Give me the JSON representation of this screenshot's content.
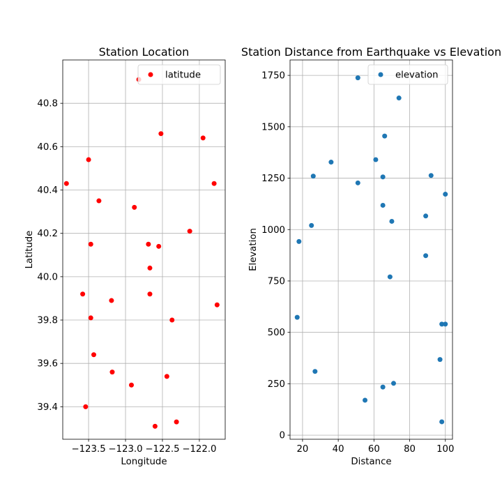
{
  "chart_data": [
    {
      "type": "scatter",
      "title": "Station Location",
      "xlabel": "Longitude",
      "ylabel": "Latitude",
      "xlim": [
        -123.85,
        -121.65
      ],
      "ylim": [
        39.25,
        41.0
      ],
      "xticks": [
        -123.5,
        -123.0,
        -122.5,
        -122.0
      ],
      "xtick_labels": [
        "−123.5",
        "−123.0",
        "−122.5",
        "−122.0"
      ],
      "yticks": [
        39.4,
        39.6,
        39.8,
        40.0,
        40.2,
        40.4,
        40.6,
        40.8
      ],
      "ytick_labels": [
        "39.4",
        "39.6",
        "39.8",
        "40.0",
        "40.2",
        "40.4",
        "40.6",
        "40.8"
      ],
      "grid": true,
      "legend_position": "upper right",
      "series": [
        {
          "name": "latitude",
          "color": "#ff0000",
          "points": [
            [
              -122.82,
              40.91
            ],
            [
              -122.52,
              40.66
            ],
            [
              -121.95,
              40.64
            ],
            [
              -123.5,
              40.54
            ],
            [
              -123.8,
              40.43
            ],
            [
              -121.8,
              40.43
            ],
            [
              -123.36,
              40.35
            ],
            [
              -122.88,
              40.32
            ],
            [
              -122.13,
              40.21
            ],
            [
              -123.47,
              40.15
            ],
            [
              -122.69,
              40.15
            ],
            [
              -122.55,
              40.14
            ],
            [
              -122.67,
              40.04
            ],
            [
              -123.58,
              39.92
            ],
            [
              -122.67,
              39.92
            ],
            [
              -123.19,
              39.89
            ],
            [
              -121.76,
              39.87
            ],
            [
              -123.47,
              39.81
            ],
            [
              -122.37,
              39.8
            ],
            [
              -123.43,
              39.64
            ],
            [
              -123.18,
              39.56
            ],
            [
              -122.44,
              39.54
            ],
            [
              -122.92,
              39.5
            ],
            [
              -123.54,
              39.4
            ],
            [
              -122.31,
              39.33
            ],
            [
              -122.6,
              39.31
            ]
          ]
        }
      ]
    },
    {
      "type": "scatter",
      "title": "Station Distance from Earthquake vs Elevation",
      "xlabel": "Distance",
      "ylabel": "Elevation",
      "xlim": [
        13,
        104
      ],
      "ylim": [
        -20,
        1825
      ],
      "xticks": [
        20,
        40,
        60,
        80,
        100
      ],
      "xtick_labels": [
        "20",
        "40",
        "60",
        "80",
        "100"
      ],
      "yticks": [
        0,
        250,
        500,
        750,
        1000,
        1250,
        1500,
        1750
      ],
      "ytick_labels": [
        "0",
        "250",
        "500",
        "750",
        "1000",
        "1250",
        "1500",
        "1750"
      ],
      "grid": true,
      "legend_position": "upper right",
      "series": [
        {
          "name": "elevation",
          "color": "#1f77b4",
          "points": [
            [
              51,
              1738
            ],
            [
              74,
              1640
            ],
            [
              66,
              1455
            ],
            [
              36,
              1328
            ],
            [
              61,
              1340
            ],
            [
              26,
              1260
            ],
            [
              65,
              1256
            ],
            [
              92,
              1263
            ],
            [
              51,
              1227
            ],
            [
              100,
              1172
            ],
            [
              65,
              1118
            ],
            [
              89,
              1066
            ],
            [
              70,
              1040
            ],
            [
              25,
              1020
            ],
            [
              18,
              942
            ],
            [
              89,
              873
            ],
            [
              69,
              770
            ],
            [
              17,
              573
            ],
            [
              98,
              540
            ],
            [
              100,
              540
            ],
            [
              97,
              368
            ],
            [
              27,
              310
            ],
            [
              71,
              252
            ],
            [
              65,
              234
            ],
            [
              55,
              170
            ],
            [
              98,
              65
            ]
          ]
        }
      ]
    }
  ]
}
